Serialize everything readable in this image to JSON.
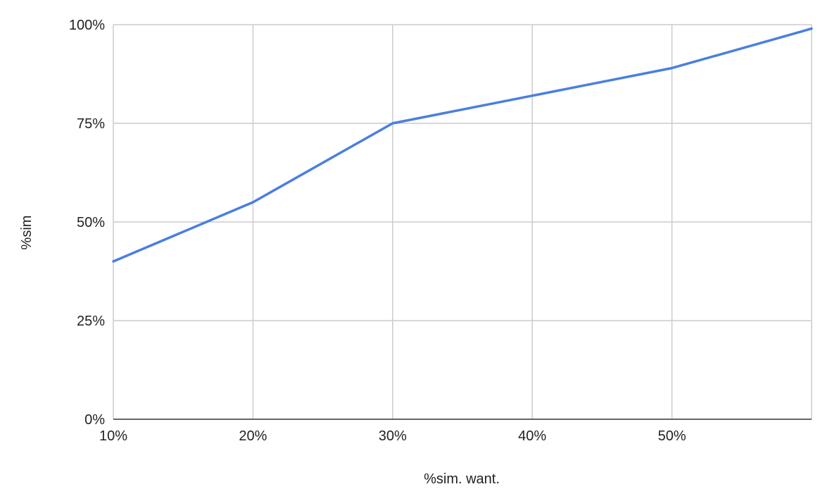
{
  "chart_data": {
    "type": "line",
    "title": "",
    "xlabel": "%sim. want.",
    "ylabel": "%sim",
    "x": [
      10,
      20,
      30,
      40,
      50,
      60
    ],
    "x_tick_values": [
      10,
      20,
      30,
      40,
      50
    ],
    "x_tick_labels": [
      "10%",
      "20%",
      "30%",
      "40%",
      "50%"
    ],
    "xlim": [
      10,
      60
    ],
    "y_tick_values": [
      0,
      25,
      50,
      75,
      100
    ],
    "y_tick_labels": [
      "0%",
      "25%",
      "50%",
      "75%",
      "100%"
    ],
    "ylim": [
      0,
      100
    ],
    "grid": true,
    "legend": "none",
    "series": [
      {
        "values": [
          40,
          55,
          75,
          82,
          89,
          99
        ],
        "color": "#4a7fe0"
      }
    ],
    "colors": {
      "grid": "#cccccc",
      "axis": "#333333"
    }
  }
}
